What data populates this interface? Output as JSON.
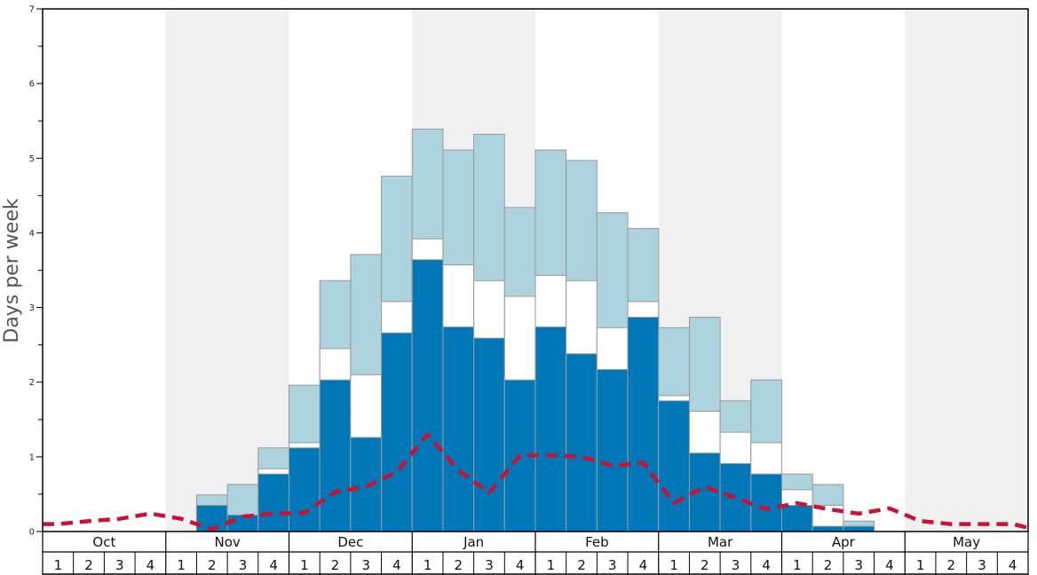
{
  "chart_data": {
    "type": "bar",
    "ylabel": "Days per week",
    "ylim": [
      0,
      7
    ],
    "yticks": [
      "0",
      "1",
      "2",
      "3",
      "4",
      "5",
      "6",
      "7"
    ],
    "months": [
      "Oct",
      "Nov",
      "Dec",
      "Jan",
      "Feb",
      "Mar",
      "Apr",
      "May"
    ],
    "weeks": [
      "1",
      "2",
      "3",
      "4"
    ],
    "shaded_months": [
      "Nov",
      "Jan",
      "Mar",
      "May"
    ],
    "colors": {
      "dark": "#0077b6",
      "middle": "#ffffff",
      "light": "#add3df",
      "line": "#cc1133",
      "band": "#f0f0f0",
      "bar_edge": "#999999"
    },
    "series": [
      {
        "values": [
          0,
          0,
          0,
          0,
          0,
          0.35,
          0.22,
          0.77,
          1.12,
          2.03,
          1.26,
          2.66,
          3.64,
          2.74,
          2.59,
          2.03,
          2.74,
          2.38,
          2.17,
          2.87,
          1.75,
          1.05,
          0.91,
          0.77,
          0.35,
          0.07,
          0.07,
          0,
          0,
          0,
          0,
          0
        ]
      },
      {
        "values": [
          0,
          0,
          0,
          0,
          0,
          0.35,
          0.22,
          0.84,
          1.19,
          2.45,
          2.1,
          3.08,
          3.92,
          3.57,
          3.36,
          3.15,
          3.43,
          3.36,
          2.73,
          3.08,
          1.82,
          1.61,
          1.33,
          1.19,
          0.56,
          0.35,
          0.07,
          0,
          0,
          0,
          0,
          0
        ]
      },
      {
        "values": [
          0,
          0,
          0,
          0,
          0,
          0.49,
          0.63,
          1.12,
          1.96,
          3.36,
          3.71,
          4.76,
          5.39,
          5.11,
          5.32,
          4.34,
          5.11,
          4.97,
          4.27,
          4.06,
          2.73,
          2.87,
          1.75,
          2.03,
          0.77,
          0.63,
          0.14,
          0,
          0,
          0,
          0,
          0
        ]
      },
      {
        "values": [
          0.1,
          0.14,
          0.17,
          0.24,
          0.17,
          0.03,
          0.2,
          0.24,
          0.25,
          0.53,
          0.6,
          0.8,
          1.3,
          0.82,
          0.52,
          1.02,
          1.02,
          1.0,
          0.88,
          0.92,
          0.38,
          0.6,
          0.45,
          0.3,
          0.38,
          0.3,
          0.24,
          0.31,
          0.14,
          0.1,
          0.1,
          0.1
        ]
      }
    ]
  }
}
